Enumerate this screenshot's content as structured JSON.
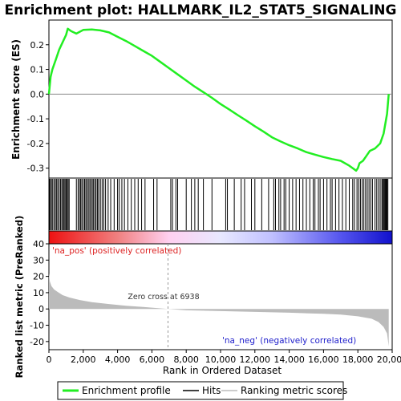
{
  "title": "Enrichment plot: HALLMARK_IL2_STAT5_SIGNALING",
  "colors": {
    "es_line": "#22ee22",
    "hits": "#000000",
    "metric_fill": "#bbbbbb",
    "pos_label": "#dd2222",
    "neg_label": "#2222cc",
    "zero_line": "#888888"
  },
  "legend": {
    "items": [
      {
        "label": "Enrichment profile",
        "color": "#22ee22",
        "style": "line"
      },
      {
        "label": "Hits",
        "color": "#000000",
        "style": "line"
      },
      {
        "label": "Ranking metric scores",
        "color": "#bbbbbb",
        "style": "line"
      }
    ]
  },
  "chart_data": {
    "type": "line",
    "title": "Enrichment plot: HALLMARK_IL2_STAT5_SIGNALING",
    "xlabel": "Rank in Ordered Dataset",
    "xlim": [
      0,
      20000
    ],
    "x_ticks": [
      "0",
      "2,000",
      "4,000",
      "6,000",
      "8,000",
      "10,000",
      "12,000",
      "14,000",
      "16,000",
      "18,000",
      "20,000"
    ],
    "n_genes": 19800,
    "es_panel": {
      "ylabel": "Enrichment score (ES)",
      "ylim": [
        -0.34,
        0.3
      ],
      "y_ticks": [
        "0.2",
        "0.1",
        "0.0",
        "-0.1",
        "-0.2",
        "-0.3"
      ],
      "series": [
        {
          "name": "Enrichment profile",
          "x": [
            0,
            100,
            200,
            400,
            600,
            800,
            1000,
            1100,
            1300,
            1600,
            2000,
            2500,
            3000,
            3500,
            4000,
            4500,
            5000,
            5500,
            6000,
            6500,
            7000,
            7500,
            8000,
            8500,
            9000,
            9500,
            10000,
            10500,
            11000,
            11500,
            12000,
            12500,
            13000,
            13500,
            14000,
            14500,
            15000,
            15500,
            16000,
            16500,
            17000,
            17500,
            17900,
            18000,
            18100,
            18300,
            18500,
            18700,
            19000,
            19300,
            19500,
            19700,
            19800
          ],
          "y": [
            0.0,
            0.07,
            0.1,
            0.14,
            0.18,
            0.21,
            0.24,
            0.265,
            0.255,
            0.245,
            0.26,
            0.262,
            0.258,
            0.25,
            0.232,
            0.215,
            0.195,
            0.175,
            0.155,
            0.13,
            0.105,
            0.08,
            0.055,
            0.03,
            0.008,
            -0.015,
            -0.04,
            -0.062,
            -0.085,
            -0.107,
            -0.13,
            -0.152,
            -0.175,
            -0.192,
            -0.207,
            -0.22,
            -0.235,
            -0.245,
            -0.255,
            -0.263,
            -0.27,
            -0.29,
            -0.31,
            -0.3,
            -0.28,
            -0.27,
            -0.25,
            -0.23,
            -0.22,
            -0.2,
            -0.16,
            -0.08,
            0.0
          ]
        }
      ]
    },
    "hits_panel": {
      "label": "Hits",
      "positions": [
        30,
        80,
        150,
        220,
        300,
        380,
        450,
        520,
        600,
        680,
        750,
        820,
        880,
        940,
        1000,
        1060,
        1120,
        1180,
        1600,
        1700,
        1780,
        1850,
        1920,
        2000,
        2080,
        2150,
        2220,
        2300,
        2380,
        2450,
        2530,
        2600,
        2680,
        2750,
        2830,
        2900,
        3000,
        3100,
        3200,
        3300,
        3450,
        3600,
        3800,
        4000,
        4100,
        4250,
        4400,
        4600,
        4800,
        5000,
        5200,
        5400,
        5600,
        6100,
        6300,
        7100,
        7200,
        7400,
        7500,
        8000,
        8300,
        8500,
        8700,
        9000,
        9500,
        10300,
        10400,
        10800,
        11200,
        11400,
        11800,
        12000,
        12400,
        12800,
        13100,
        13200,
        13400,
        13500,
        13700,
        13800,
        14000,
        14200,
        14400,
        14600,
        14800,
        15000,
        15200,
        15400,
        15500,
        15700,
        15800,
        16000,
        16200,
        16400,
        16500,
        16700,
        16900,
        17100,
        17300,
        17500,
        17700,
        17800,
        17950,
        18050,
        18150,
        18250,
        18350,
        18450,
        18550,
        18650,
        18750,
        18850,
        19000,
        19100,
        19200,
        19300,
        19400,
        19450,
        19500,
        19550,
        19600,
        19650,
        19700,
        19750
      ]
    },
    "metric_panel": {
      "ylabel": "Ranked list metric (PreRanked)",
      "ylim": [
        -25,
        40
      ],
      "y_ticks": [
        "40",
        "30",
        "20",
        "10",
        "0",
        "-10",
        "-20"
      ],
      "zero_cross": 6938,
      "zero_cross_label": "Zero cross at 6938",
      "pos_label": "'na_pos' (positively correlated)",
      "neg_label": "'na_neg' (negatively correlated)",
      "x": [
        0,
        50,
        150,
        300,
        500,
        800,
        1200,
        1800,
        2500,
        3500,
        4500,
        5500,
        6938,
        8000,
        10000,
        12000,
        14000,
        16000,
        17000,
        18000,
        18800,
        19200,
        19500,
        19700,
        19800
      ],
      "y": [
        22,
        17,
        14,
        12,
        10.5,
        8.5,
        7,
        5.5,
        4.2,
        3,
        2,
        1.2,
        0,
        -0.8,
        -1.3,
        -1.8,
        -2.3,
        -3,
        -3.5,
        -4.5,
        -6,
        -8,
        -11,
        -15,
        -23
      ]
    }
  }
}
